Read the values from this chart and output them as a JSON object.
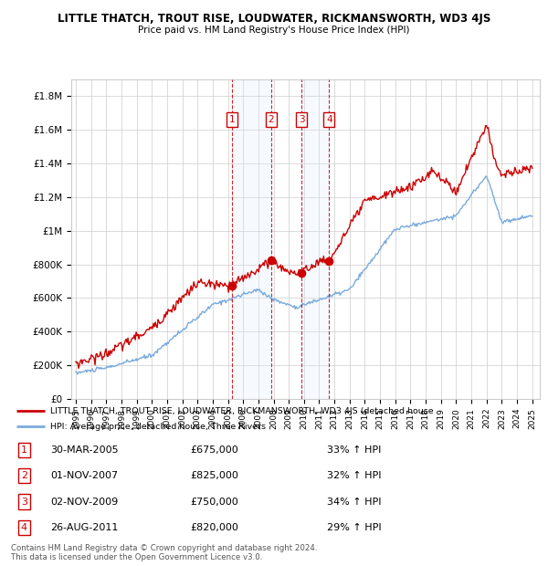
{
  "title": "LITTLE THATCH, TROUT RISE, LOUDWATER, RICKMANSWORTH, WD3 4JS",
  "subtitle": "Price paid vs. HM Land Registry's House Price Index (HPI)",
  "legend_line1": "LITTLE THATCH, TROUT RISE, LOUDWATER, RICKMANSWORTH, WD3 4JS (detached house",
  "legend_line2": "HPI: Average price, detached house, Three Rivers",
  "footer1": "Contains HM Land Registry data © Crown copyright and database right 2024.",
  "footer2": "This data is licensed under the Open Government Licence v3.0.",
  "transactions": [
    {
      "num": 1,
      "date": "30-MAR-2005",
      "price": "£675,000",
      "hpi": "33% ↑ HPI",
      "year": 2005.25
    },
    {
      "num": 2,
      "date": "01-NOV-2007",
      "price": "£825,000",
      "hpi": "32% ↑ HPI",
      "year": 2007.83
    },
    {
      "num": 3,
      "date": "02-NOV-2009",
      "price": "£750,000",
      "hpi": "34% ↑ HPI",
      "year": 2009.83
    },
    {
      "num": 4,
      "date": "26-AUG-2011",
      "price": "£820,000",
      "hpi": "29% ↑ HPI",
      "year": 2011.65
    }
  ],
  "sale_values": [
    675000,
    825000,
    750000,
    820000
  ],
  "ylim": [
    0,
    1900000
  ],
  "yticks": [
    0,
    200000,
    400000,
    600000,
    800000,
    1000000,
    1200000,
    1400000,
    1600000,
    1800000
  ],
  "ytick_labels": [
    "£0",
    "£200K",
    "£400K",
    "£600K",
    "£800K",
    "£1M",
    "£1.2M",
    "£1.4M",
    "£1.6M",
    "£1.8M"
  ],
  "red_color": "#cc0000",
  "blue_color": "#7aaadd",
  "shade_color": "#ddeeff",
  "grid_color": "#cccccc"
}
